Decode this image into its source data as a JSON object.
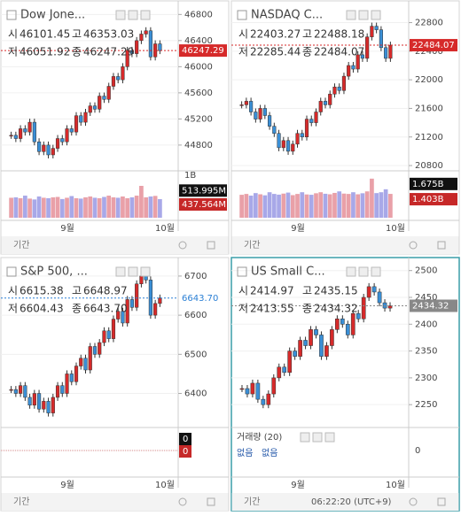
{
  "panels": [
    {
      "title": "Dow Jone...",
      "quote": [
        "시",
        "46101.45",
        "고",
        "46353.03",
        "저",
        "46051.92",
        "종",
        "46247.29"
      ],
      "ylim": [
        44460,
        46940
      ],
      "yticks": [
        46800,
        46400,
        46000,
        45600,
        45200,
        44800
      ],
      "price_label": {
        "value": 46247.29,
        "label": "46247.29"
      },
      "price_color": "#d62a2a",
      "closes": [
        44950,
        44900,
        45050,
        45000,
        45150,
        44850,
        44700,
        44800,
        44650,
        44750,
        44900,
        44850,
        45050,
        45000,
        45250,
        45150,
        45300,
        45400,
        45350,
        45550,
        45500,
        45700,
        45850,
        45800,
        46000,
        46250,
        46200,
        46400,
        46500,
        46550,
        46150,
        46350,
        46247.29
      ],
      "vol_ylim": [
        0,
        1000
      ],
      "vol_ticks": [
        {
          "value": 1000,
          "label": "1B"
        }
      ],
      "vol_labels": [
        {
          "value": 513.995,
          "label": "513.995M"
        },
        {
          "value": 437.564,
          "label": "437.564M"
        }
      ],
      "volumes": [
        470,
        480,
        460,
        520,
        450,
        430,
        500,
        470,
        460,
        480,
        490,
        440,
        470,
        510,
        460,
        450,
        480,
        500,
        470,
        460,
        490,
        520,
        480,
        470,
        500,
        460,
        480,
        520,
        750,
        480,
        500,
        514,
        437.564
      ],
      "months": [
        "9월",
        "10월"
      ],
      "footer": "기간"
    },
    {
      "title": "NASDAQ C...",
      "quote": [
        "시",
        "22403.27",
        "고",
        "22488.18",
        "저",
        "22285.44",
        "종",
        "22484.07"
      ],
      "ylim": [
        20776,
        23042
      ],
      "yticks": [
        22800,
        22400,
        22000,
        21600,
        21200,
        20800
      ],
      "price_label": {
        "value": 22484.07,
        "label": "22484.07"
      },
      "price_color": "#d62a2a",
      "closes": [
        21650,
        21700,
        21550,
        21450,
        21600,
        21500,
        21350,
        21250,
        21050,
        21150,
        21000,
        21100,
        21250,
        21200,
        21450,
        21400,
        21550,
        21700,
        21650,
        21800,
        21900,
        21850,
        22050,
        22200,
        22150,
        22350,
        22300,
        22600,
        22750,
        22700,
        22450,
        22300,
        22484.07
      ],
      "vol_ylim": [
        0,
        2.5
      ],
      "vol_ticks": [],
      "vol_labels": [
        {
          "value": 1.675,
          "label": "1.675B"
        },
        {
          "value": 1.403,
          "label": "1.403B"
        }
      ],
      "volumes": [
        1.35,
        1.4,
        1.3,
        1.45,
        1.38,
        1.32,
        1.5,
        1.4,
        1.36,
        1.42,
        1.48,
        1.33,
        1.4,
        1.5,
        1.37,
        1.35,
        1.44,
        1.5,
        1.41,
        1.38,
        1.46,
        1.55,
        1.42,
        1.4,
        1.5,
        1.38,
        1.44,
        1.55,
        2.3,
        1.45,
        1.5,
        1.675,
        1.403
      ],
      "months": [
        "9월",
        "10월"
      ],
      "footer": "기간"
    },
    {
      "title": "S&P 500, ...",
      "quote": [
        "시",
        "6615.38",
        "고",
        "6648.97",
        "저",
        "6604.43",
        "종",
        "6643.70"
      ],
      "ylim": [
        6322,
        6736
      ],
      "yticks": [
        6700,
        6600,
        6500,
        6400
      ],
      "price_label": {
        "value": 6643.7,
        "label": "6643.70"
      },
      "price_color": "#2a7fd4",
      "closes": [
        6410,
        6400,
        6420,
        6390,
        6370,
        6400,
        6360,
        6380,
        6350,
        6390,
        6420,
        6400,
        6450,
        6430,
        6470,
        6490,
        6460,
        6520,
        6500,
        6530,
        6560,
        6540,
        6590,
        6610,
        6580,
        6640,
        6620,
        6680,
        6700,
        6690,
        6600,
        6630,
        6643.7
      ],
      "vol_labels": [
        0,
        0
      ],
      "months": [
        "9월",
        "10월"
      ],
      "footer": "기간"
    },
    {
      "title": "US Small C...",
      "quote": [
        "시",
        "2414.97",
        "고",
        "2435.15",
        "저",
        "2413.55",
        "종",
        "2434.32"
      ],
      "ylim": [
        2214,
        2516
      ],
      "yticks": [
        2500,
        2450,
        2400,
        2350,
        2300,
        2250
      ],
      "price_label": {
        "value": 2434.32,
        "label": "2434.32"
      },
      "price_color": "#888888",
      "closes": [
        2280,
        2270,
        2290,
        2260,
        2250,
        2270,
        2300,
        2320,
        2310,
        2350,
        2340,
        2370,
        2360,
        2390,
        2380,
        2340,
        2360,
        2390,
        2410,
        2400,
        2380,
        2420,
        2410,
        2450,
        2470,
        2460,
        2440,
        2430,
        2434.32
      ],
      "volume_title": "거래량 (20)",
      "volume_values": [
        "없음",
        "없음"
      ],
      "vol_axis": [
        0
      ],
      "months": [
        "9월",
        "10월"
      ],
      "footer": "기간",
      "time": "06:22:20 (UTC+9)"
    }
  ]
}
